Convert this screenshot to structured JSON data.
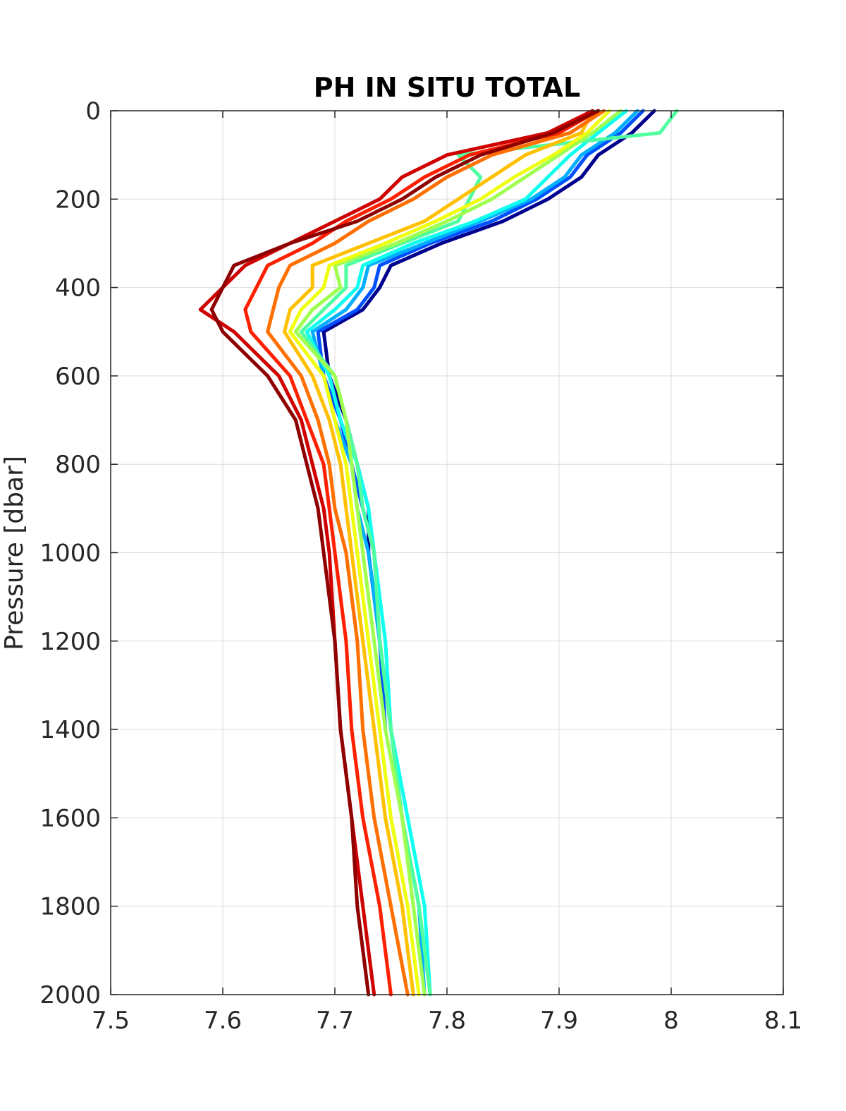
{
  "chart_data": {
    "type": "line",
    "title": "PH IN SITU TOTAL",
    "xlabel": "",
    "ylabel": "Pressure [dbar]",
    "xlim": [
      7.5,
      8.1
    ],
    "ylim": [
      0,
      2000
    ],
    "y_reversed": true,
    "grid": true,
    "legend": "none",
    "colormap": "jet",
    "x_ticks": [
      "7.5",
      "7.6",
      "7.7",
      "7.8",
      "7.9",
      "8",
      "8.1"
    ],
    "y_ticks": [
      "0",
      "200",
      "400",
      "600",
      "800",
      "1000",
      "1200",
      "1400",
      "1600",
      "1800",
      "2000"
    ],
    "pressure": [
      0,
      50,
      100,
      150,
      200,
      250,
      300,
      350,
      400,
      450,
      500,
      600,
      700,
      800,
      900,
      1000,
      1200,
      1400,
      1600,
      1800,
      2000
    ],
    "series": [
      {
        "color": "#00008f",
        "values": [
          7.985,
          7.965,
          7.935,
          7.92,
          7.89,
          7.85,
          7.795,
          7.75,
          7.74,
          7.725,
          7.69,
          7.695,
          7.71,
          7.72,
          7.73,
          7.73,
          7.74,
          7.75,
          null,
          null,
          null
        ]
      },
      {
        "color": "#0050ff",
        "values": [
          7.975,
          7.955,
          7.925,
          7.91,
          7.88,
          7.84,
          7.785,
          7.74,
          7.735,
          7.72,
          7.685,
          7.69,
          7.705,
          7.715,
          7.725,
          7.735,
          7.74,
          7.745,
          null,
          null,
          null
        ]
      },
      {
        "color": "#00afff",
        "values": [
          7.97,
          7.95,
          7.92,
          7.905,
          7.875,
          7.83,
          7.78,
          7.73,
          7.725,
          7.71,
          7.68,
          7.69,
          7.7,
          7.715,
          7.72,
          7.73,
          7.74,
          7.75,
          7.76,
          7.775,
          7.78
        ]
      },
      {
        "color": "#10ffef",
        "values": [
          7.96,
          7.935,
          7.91,
          7.89,
          7.87,
          7.825,
          7.77,
          7.725,
          7.72,
          7.7,
          7.675,
          7.695,
          7.705,
          7.72,
          7.73,
          7.735,
          7.745,
          7.75,
          7.765,
          7.78,
          7.785
        ]
      },
      {
        "color": "#50ff9f",
        "values": [
          8.005,
          7.99,
          7.81,
          7.83,
          7.82,
          7.81,
          7.76,
          7.71,
          7.71,
          7.69,
          7.67,
          7.7,
          7.71,
          7.72,
          7.725,
          7.735,
          7.74,
          7.75,
          7.76,
          7.775,
          7.785
        ]
      },
      {
        "color": "#9fff50",
        "values": [
          7.955,
          7.93,
          7.9,
          7.87,
          7.84,
          7.8,
          7.755,
          7.7,
          7.705,
          7.68,
          7.665,
          7.7,
          7.71,
          7.715,
          7.72,
          7.725,
          7.735,
          7.745,
          7.76,
          7.77,
          7.78
        ]
      },
      {
        "color": "#efff10",
        "values": [
          7.945,
          7.925,
          7.895,
          7.86,
          7.83,
          7.79,
          7.745,
          7.695,
          7.69,
          7.67,
          7.66,
          7.69,
          7.7,
          7.71,
          7.715,
          7.72,
          7.73,
          7.74,
          7.75,
          7.765,
          7.775
        ]
      },
      {
        "color": "#ffc000",
        "values": [
          7.93,
          7.92,
          7.87,
          7.84,
          7.81,
          7.78,
          7.73,
          7.68,
          7.68,
          7.66,
          7.655,
          7.68,
          7.695,
          7.705,
          7.71,
          7.715,
          7.725,
          7.735,
          7.745,
          7.76,
          7.77
        ]
      },
      {
        "color": "#ff7000",
        "values": [
          7.94,
          7.91,
          7.84,
          7.8,
          7.77,
          7.73,
          7.7,
          7.66,
          7.65,
          7.645,
          7.64,
          7.67,
          7.685,
          7.695,
          7.7,
          7.71,
          7.72,
          7.725,
          7.735,
          7.75,
          7.765
        ]
      },
      {
        "color": "#ff2000",
        "values": [
          7.935,
          7.9,
          7.82,
          7.78,
          7.75,
          7.71,
          7.68,
          7.64,
          7.63,
          7.62,
          7.625,
          7.66,
          7.675,
          7.69,
          7.695,
          7.7,
          7.71,
          7.715,
          7.725,
          7.74,
          7.75
        ]
      },
      {
        "color": "#cf0000",
        "values": [
          7.93,
          7.89,
          7.8,
          7.76,
          7.74,
          7.7,
          7.66,
          7.62,
          7.6,
          7.58,
          7.61,
          7.65,
          7.67,
          7.68,
          7.69,
          7.695,
          7.7,
          7.705,
          7.715,
          7.725,
          7.735
        ]
      },
      {
        "color": "#8f0000",
        "values": [
          7.935,
          7.895,
          7.83,
          7.79,
          7.76,
          7.72,
          7.66,
          7.61,
          7.6,
          7.59,
          7.6,
          7.64,
          7.665,
          7.675,
          7.685,
          7.69,
          7.7,
          7.705,
          7.715,
          7.72,
          7.73
        ]
      }
    ]
  }
}
